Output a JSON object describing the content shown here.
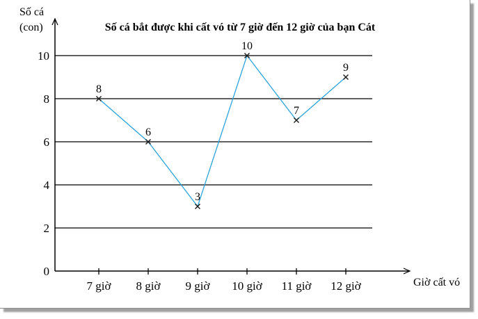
{
  "page": {
    "background": "#ffffff",
    "shadow_color": "#808080"
  },
  "chart_data": {
    "type": "line",
    "title": "Số cá bắt được khi cất vó từ 7 giờ đến 12 giờ của bạn Cát",
    "xlabel": "Giờ cất vó",
    "ylabel": "Số cá (con)",
    "ylabel_lines": [
      "Số cá",
      "(con)"
    ],
    "categories": [
      "7 giờ",
      "8 giờ",
      "9 giờ",
      "10 giờ",
      "11 giờ",
      "12 giờ"
    ],
    "values": [
      8,
      6,
      3,
      10,
      7,
      9
    ],
    "y_ticks": [
      0,
      2,
      4,
      6,
      8,
      10
    ],
    "ylim": [
      0,
      11
    ],
    "grid": true,
    "legend": "none",
    "marker": "x",
    "line_color": "#29a4dc",
    "marker_color": "#1b1b1b",
    "axis_color": "#000000",
    "label_color": "#000000"
  }
}
